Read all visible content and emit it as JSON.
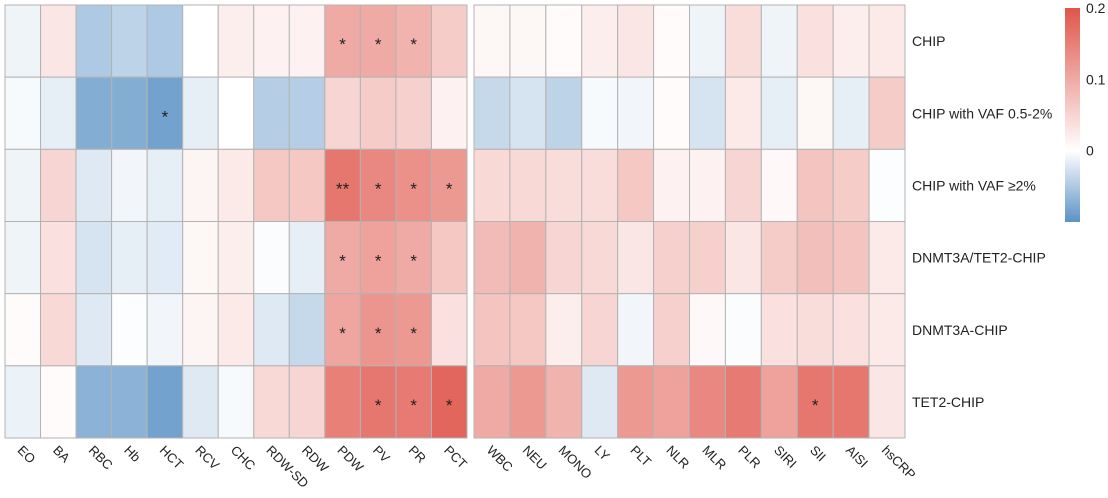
{
  "chart_data": {
    "type": "heatmap",
    "title": "",
    "rows": [
      "CHIP",
      "CHIP with VAF 0.5-2%",
      "CHIP with VAF ≥2%",
      "DNMT3A/TET2-CHIP",
      "DNMT3A-CHIP",
      "TET2-CHIP"
    ],
    "panels": [
      {
        "columns": [
          "EO",
          "BA",
          "RBC",
          "Hb",
          "HCT",
          "RCV",
          "CHC",
          "RDW-SD",
          "RDW",
          "PDW",
          "PV",
          "PR",
          "PCT"
        ]
      },
      {
        "columns": [
          "WBC",
          "NEU",
          "MONO",
          "LY",
          "PLT",
          "NLR",
          "MLR",
          "PLR",
          "SIRI",
          "SII",
          "AISI",
          "hsCRP"
        ]
      }
    ],
    "values": [
      [
        -0.01,
        0.03,
        -0.05,
        -0.04,
        -0.05,
        0,
        0.02,
        0.015,
        0.015,
        0.1,
        0.1,
        0.09,
        0.06,
        0.01,
        0.01,
        0.005,
        0.02,
        0.03,
        0.005,
        -0.01,
        0.04,
        -0.01,
        0.035,
        0.02,
        0.025
      ],
      [
        -0.005,
        -0.015,
        -0.075,
        -0.075,
        -0.085,
        -0.015,
        0,
        -0.045,
        -0.045,
        0.05,
        0.06,
        0.055,
        0.015,
        -0.035,
        -0.025,
        -0.04,
        -0.005,
        -0.008,
        0.005,
        -0.025,
        0.025,
        -0.015,
        0.01,
        -0.015,
        0.06
      ],
      [
        -0.01,
        0.05,
        -0.02,
        -0.008,
        -0.015,
        0.012,
        0.025,
        0.065,
        0.065,
        0.16,
        0.14,
        0.13,
        0.12,
        0.045,
        0.045,
        0.04,
        0.04,
        0.065,
        0.015,
        0.015,
        0.05,
        0.008,
        0.07,
        0.06,
        -0.002
      ],
      [
        -0.01,
        0.035,
        -0.025,
        -0.015,
        -0.018,
        0.01,
        0.02,
        -0.003,
        -0.015,
        0.1,
        0.11,
        0.1,
        0.065,
        0.08,
        0.09,
        0.05,
        0.045,
        0.03,
        0.055,
        0.055,
        0.03,
        0.06,
        0.075,
        0.07,
        0.025
      ],
      [
        0.005,
        0.045,
        -0.02,
        -0.002,
        -0.008,
        0.012,
        0.025,
        -0.02,
        -0.035,
        0.105,
        0.125,
        0.12,
        0.035,
        0.07,
        0.065,
        0.02,
        0.05,
        -0.008,
        0.055,
        0.008,
        -0.003,
        0.035,
        0.04,
        0.035,
        0.025
      ],
      [
        -0.012,
        0.005,
        -0.07,
        -0.07,
        -0.085,
        -0.02,
        -0.005,
        0.045,
        0.05,
        0.15,
        0.16,
        0.155,
        0.18,
        0.1,
        0.12,
        0.09,
        -0.02,
        0.12,
        0.11,
        0.14,
        0.155,
        0.11,
        0.16,
        0.16,
        0.03
      ]
    ],
    "significance": [
      [
        "",
        "",
        "",
        "",
        "",
        "",
        "",
        "",
        "",
        "*",
        "*",
        "*",
        "",
        "",
        "",
        "",
        "",
        "",
        "",
        "",
        "",
        "",
        "",
        "",
        ""
      ],
      [
        "",
        "",
        "",
        "",
        "*",
        "",
        "",
        "",
        "",
        "",
        "",
        "",
        "",
        "",
        "",
        "",
        "",
        "",
        "",
        "",
        "",
        "",
        "",
        "",
        ""
      ],
      [
        "",
        "",
        "",
        "",
        "",
        "",
        "",
        "",
        "",
        "**",
        "*",
        "*",
        "*",
        "",
        "",
        "",
        "",
        "",
        "",
        "",
        "",
        "",
        "",
        "",
        ""
      ],
      [
        "",
        "",
        "",
        "",
        "",
        "",
        "",
        "",
        "",
        "*",
        "*",
        "*",
        "",
        "",
        "",
        "",
        "",
        "",
        "",
        "",
        "",
        "",
        "",
        "",
        ""
      ],
      [
        "",
        "",
        "",
        "",
        "",
        "",
        "",
        "",
        "",
        "*",
        "*",
        "*",
        "",
        "",
        "",
        "",
        "",
        "",
        "",
        "",
        "",
        "",
        "",
        "",
        ""
      ],
      [
        "",
        "",
        "",
        "",
        "",
        "",
        "",
        "",
        "",
        "",
        "*",
        "*",
        "*",
        "",
        "",
        "",
        "",
        "",
        "",
        "",
        "",
        "",
        "*",
        "",
        ""
      ]
    ],
    "colorbar": {
      "range": [
        -0.1,
        0.2
      ],
      "ticks": [
        "0.2",
        "0.1",
        "0"
      ],
      "low_color": "#5B92C6",
      "mid_color": "#FFFFFF",
      "high_color": "#E0554A"
    }
  }
}
